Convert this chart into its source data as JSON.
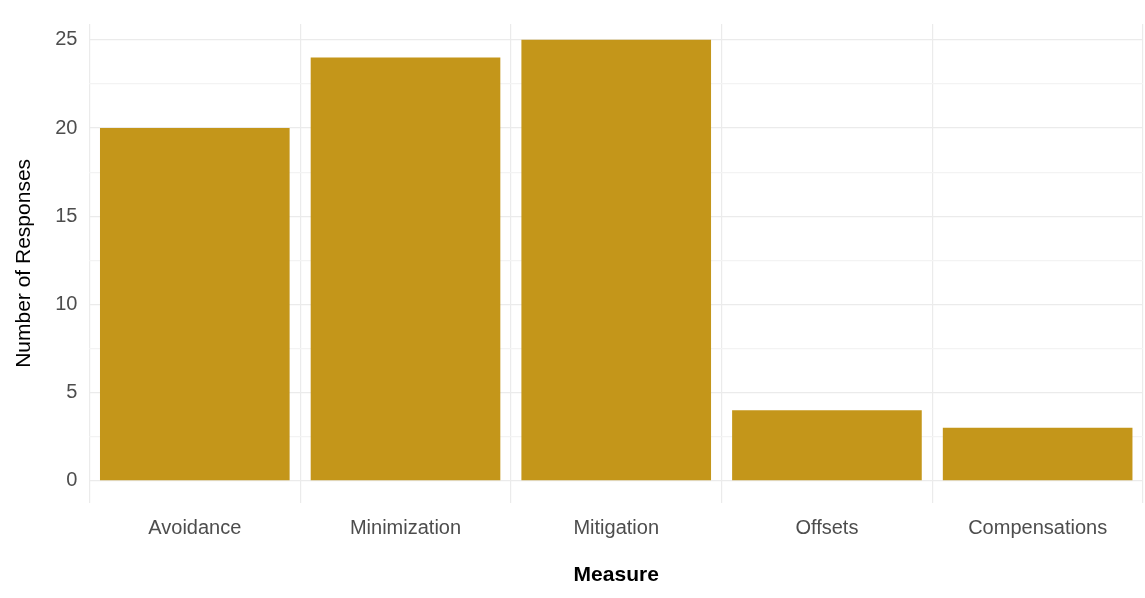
{
  "chart_data": {
    "type": "bar",
    "xlabel": "Measure",
    "ylabel": "Number of Responses",
    "categories": [
      "Avoidance",
      "Minimization",
      "Mitigation",
      "Offsets",
      "Compensations"
    ],
    "values": [
      20,
      24,
      25,
      4,
      3
    ],
    "color": "#c4961a",
    "ylim": [
      -1.25,
      25.9
    ],
    "yticks": [
      0,
      {
        "value": 2.5,
        "label": null
      },
      5,
      {
        "value": 7.5,
        "label": null
      },
      10,
      {
        "value": 12.5,
        "label": null
      },
      15,
      {
        "value": 17.5,
        "label": null
      },
      20,
      {
        "value": 22.5,
        "label": null
      },
      25
    ],
    "grid": true,
    "legend": false
  }
}
